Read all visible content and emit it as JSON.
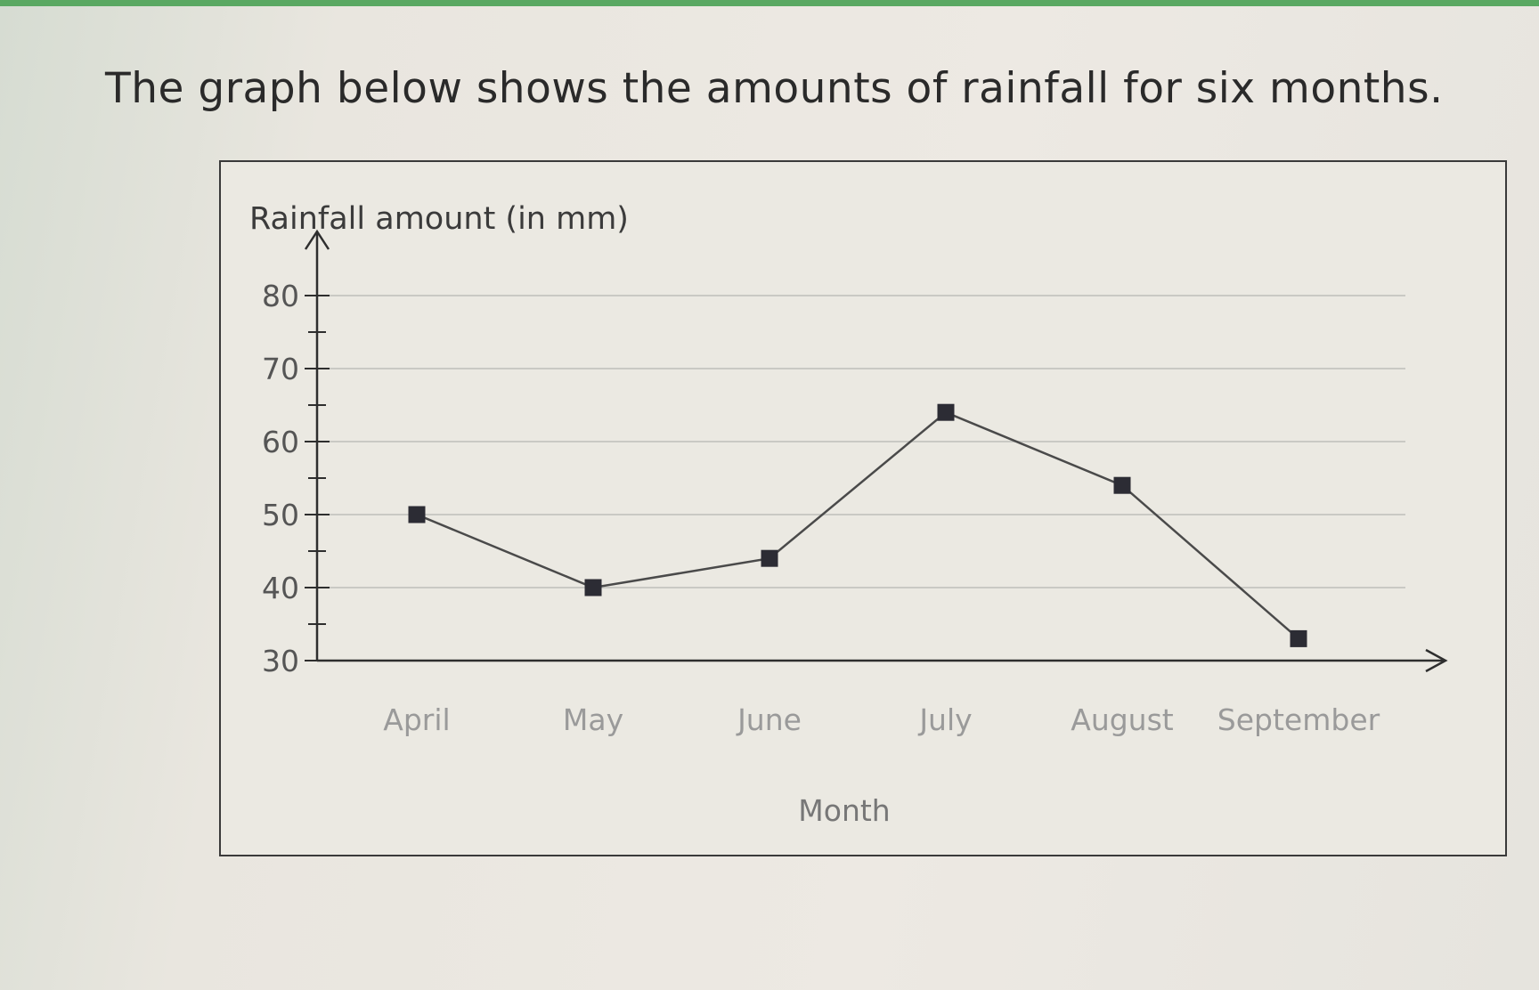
{
  "question": "The graph below shows the amounts of rainfall for six months.",
  "colors": {
    "axis": "#2e2e2e",
    "grid": "#c9c9c4",
    "line": "#4a4a4a",
    "marker": "#2c2c34"
  },
  "chart_data": {
    "type": "line",
    "ylabel": "Rainfall amount (in mm)",
    "xlabel": "Month",
    "categories": [
      "April",
      "May",
      "June",
      "July",
      "August",
      "September"
    ],
    "values": [
      50,
      40,
      44,
      64,
      54,
      33
    ],
    "ylim": [
      30,
      80
    ],
    "yticks": [
      30,
      40,
      50,
      60,
      70,
      80
    ],
    "minor_tick_step": 5,
    "grid": true,
    "marker": "square"
  }
}
